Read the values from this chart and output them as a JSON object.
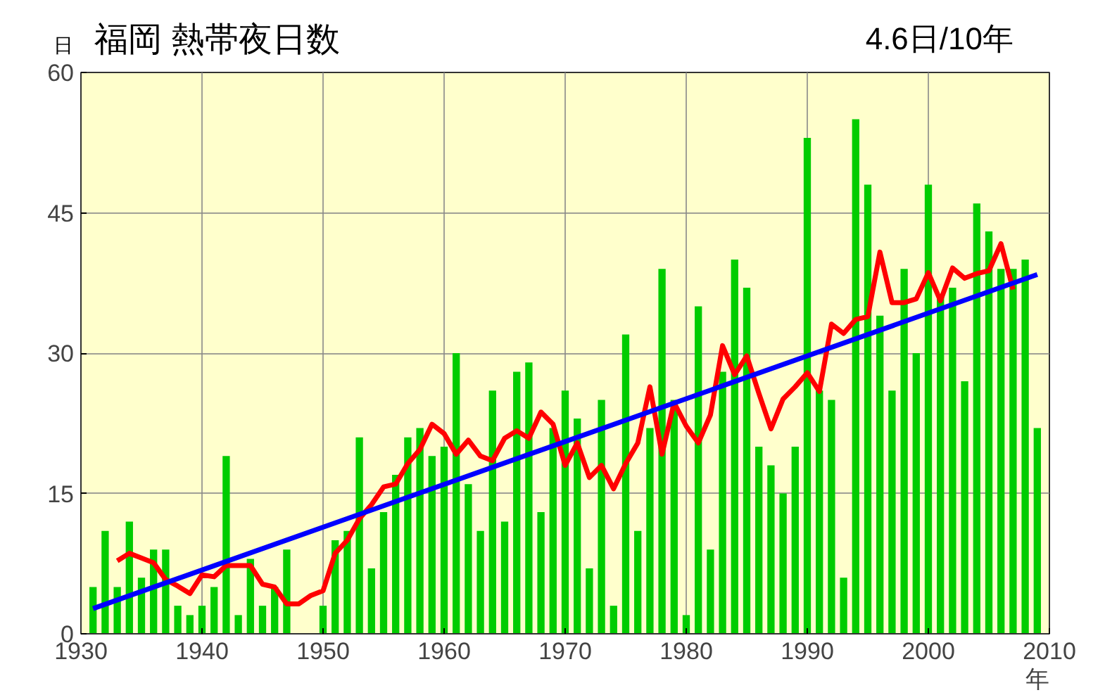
{
  "chart_data": {
    "type": "bar",
    "title": "福岡 熱帯夜日数",
    "ylabel": "日",
    "xlabel": "年",
    "annotations": [
      "4.6日/10年"
    ],
    "x": [
      1931,
      1932,
      1933,
      1934,
      1935,
      1936,
      1937,
      1938,
      1939,
      1940,
      1941,
      1942,
      1943,
      1944,
      1945,
      1946,
      1947,
      1948,
      1949,
      1950,
      1951,
      1952,
      1953,
      1954,
      1955,
      1956,
      1957,
      1958,
      1959,
      1960,
      1961,
      1962,
      1963,
      1964,
      1965,
      1966,
      1967,
      1968,
      1969,
      1970,
      1971,
      1972,
      1973,
      1974,
      1975,
      1976,
      1977,
      1978,
      1979,
      1980,
      1981,
      1982,
      1983,
      1984,
      1985,
      1986,
      1987,
      1988,
      1989,
      1990,
      1991,
      1992,
      1993,
      1994,
      1995,
      1996,
      1997,
      1998,
      1999,
      2000,
      2001,
      2002,
      2003,
      2004,
      2005,
      2006,
      2007,
      2008,
      2009
    ],
    "series": [
      {
        "color": "#00cc00",
        "values": [
          5,
          11,
          5,
          12,
          6,
          9,
          9,
          3,
          2,
          3,
          5,
          19,
          2,
          8,
          3,
          5,
          9,
          0,
          0,
          3,
          10,
          11,
          21,
          7,
          13,
          17,
          21,
          22,
          19,
          20,
          30,
          16,
          11,
          26,
          12,
          28,
          29,
          13,
          22,
          26,
          23,
          7,
          25,
          3,
          32,
          11,
          22,
          39,
          25,
          2,
          35,
          9,
          28,
          40,
          37,
          20,
          18,
          15,
          20,
          53,
          26,
          25,
          6,
          55,
          48,
          34,
          26,
          39,
          30,
          48,
          36,
          37,
          27,
          46,
          43,
          39,
          39,
          40,
          22
        ]
      },
      {
        "type": "line",
        "color": "#ff0000",
        "x": [
          1933,
          1934,
          1935,
          1936,
          1937,
          1938,
          1939,
          1940,
          1941,
          1942,
          1943,
          1944,
          1945,
          1946,
          1947,
          1948,
          1949,
          1950,
          1951,
          1952,
          1953,
          1954,
          1955,
          1956,
          1957,
          1958,
          1959,
          1960,
          1961,
          1962,
          1963,
          1964,
          1965,
          1966,
          1967,
          1968,
          1969,
          1970,
          1971,
          1972,
          1973,
          1974,
          1975,
          1976,
          1977,
          1978,
          1979,
          1980,
          1981,
          1982,
          1983,
          1984,
          1985,
          1986,
          1987,
          1988,
          1989,
          1990,
          1991,
          1992,
          1993,
          1994,
          1995,
          1996,
          1997,
          1998,
          1999,
          2000,
          2001,
          2002,
          2003,
          2004,
          2005,
          2006,
          2007
        ],
        "values": [
          7.8,
          8.6,
          8.1,
          7.6,
          5.8,
          5.1,
          4.3,
          6.3,
          6.1,
          7.3,
          7.3,
          7.3,
          5.3,
          5.0,
          3.2,
          3.2,
          4.1,
          4.6,
          8.6,
          10,
          12.3,
          13.8,
          15.7,
          16,
          18.2,
          19.7,
          22.4,
          21.4,
          19.2,
          20.7,
          19,
          18.5,
          20.9,
          21.7,
          20.9,
          23.7,
          22.4,
          18,
          20.4,
          16.7,
          18,
          15.5,
          18.2,
          20.4,
          26.4,
          19.2,
          24.7,
          22.2,
          20.4,
          23.4,
          30.8,
          27.7,
          29.7,
          25.7,
          21.9,
          25.1,
          26.4,
          27.9,
          25.9,
          33.1,
          32.1,
          33.6,
          33.9,
          40.8,
          35.4,
          35.4,
          35.8,
          38.6,
          35.6,
          39.1,
          38.0,
          38.5,
          38.8,
          41.7,
          36.8
        ]
      },
      {
        "type": "line",
        "color": "#0000ff",
        "x": [
          1931,
          2009
        ],
        "values": [
          2.7,
          38.4
        ]
      }
    ],
    "xlim": [
      1930,
      2010
    ],
    "ylim": [
      0,
      60
    ],
    "xticks": [
      1930,
      1940,
      1950,
      1960,
      1970,
      1980,
      1990,
      2000,
      2010
    ],
    "yticks": [
      0,
      15,
      30,
      45,
      60
    ],
    "grid": true
  }
}
